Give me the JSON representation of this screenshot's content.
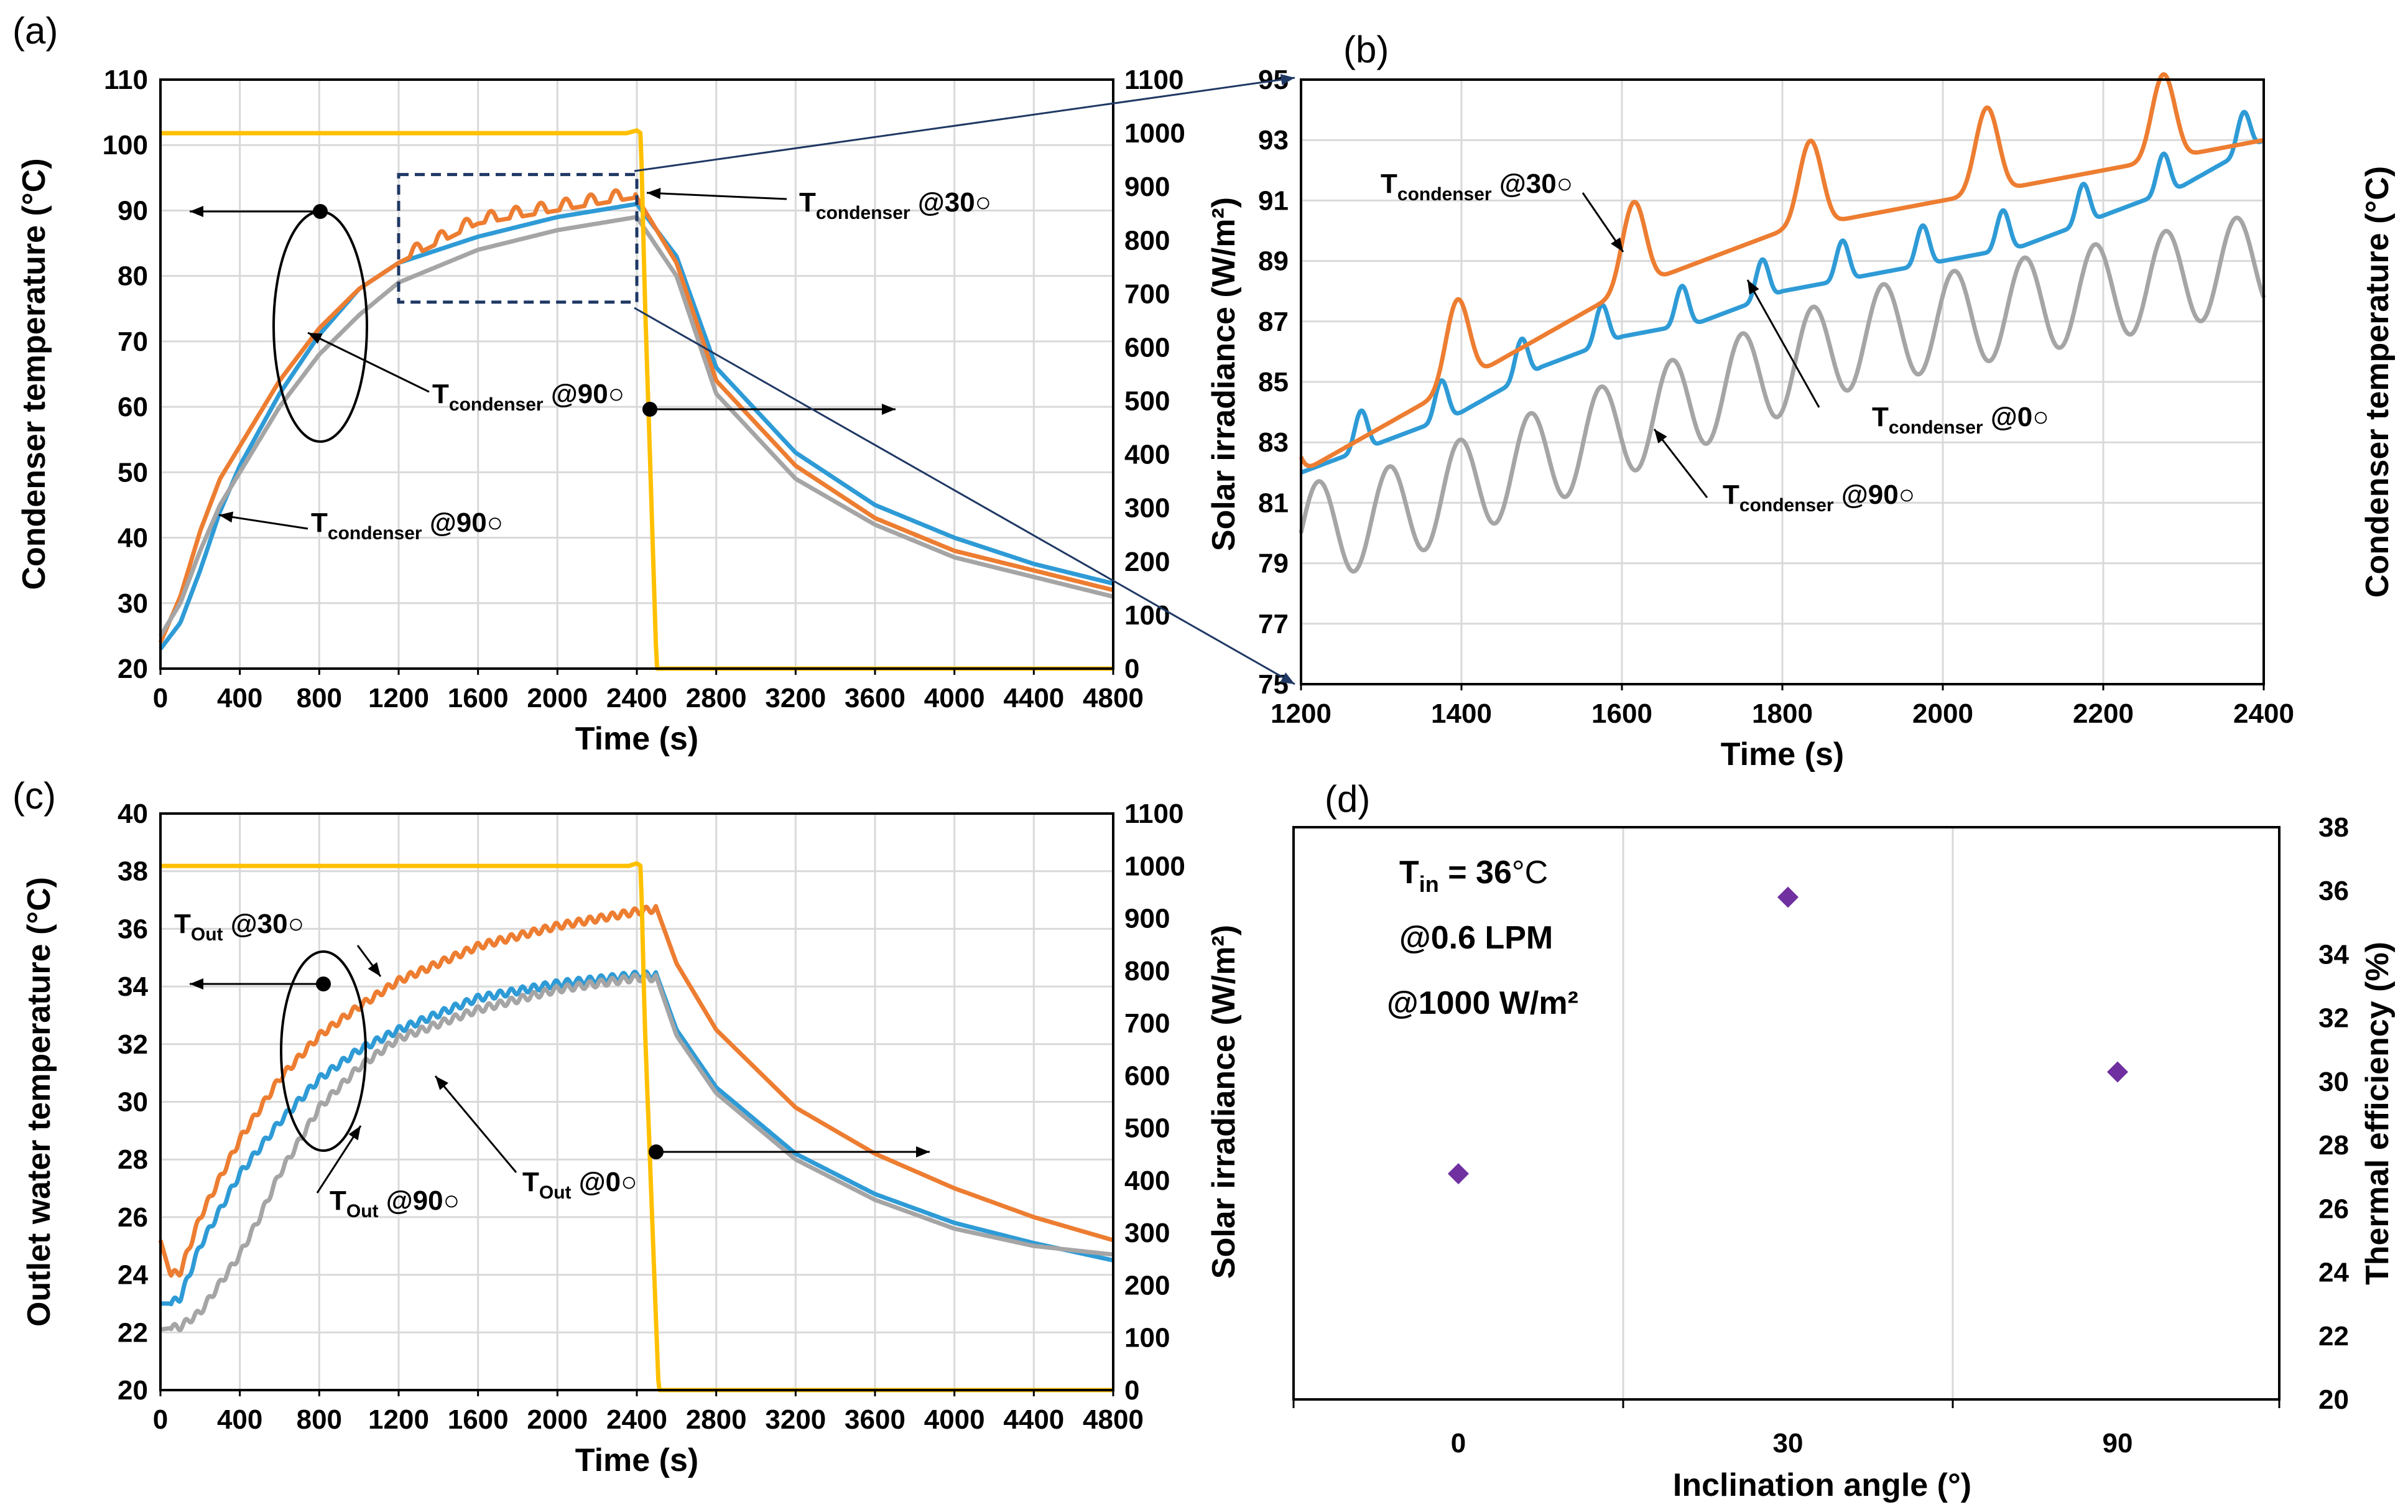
{
  "figure": {
    "panels": [
      "(a)",
      "(b)",
      "(c)",
      "(d)"
    ]
  },
  "colors": {
    "orange": "#ED7D31",
    "blue": "#2E9BD6",
    "gray": "#A5A5A5",
    "yellow": "#FFC000",
    "purple": "#7030A0",
    "navy": "#1F3864"
  },
  "chart_data": [
    {
      "id": "a",
      "type": "line",
      "xlabel": "Time (s)",
      "ylabel": "Condenser temperature (°C)",
      "ylabel2": "Solar irradiance (W/m²)",
      "xlim": [
        0,
        4800
      ],
      "ylim": [
        20,
        110
      ],
      "ylim2": [
        0,
        1100
      ],
      "xticks": [
        0,
        400,
        800,
        1200,
        1600,
        2000,
        2400,
        2800,
        3200,
        3600,
        4000,
        4400,
        4800
      ],
      "yticks": [
        20,
        30,
        40,
        50,
        60,
        70,
        80,
        90,
        100,
        110
      ],
      "yticks2": [
        0,
        100,
        200,
        300,
        400,
        500,
        600,
        700,
        800,
        900,
        1000,
        1100
      ],
      "series": [
        {
          "name": "Tcondenser @0°",
          "color": "blue",
          "x": [
            0,
            100,
            200,
            300,
            400,
            600,
            800,
            1000,
            1200,
            1600,
            2000,
            2400,
            2600,
            2800,
            3200,
            3600,
            4000,
            4400,
            4800
          ],
          "y": [
            23,
            27,
            35,
            44,
            51,
            62,
            71,
            78,
            82,
            86,
            89,
            91,
            83,
            66,
            53,
            45,
            40,
            36,
            33
          ]
        },
        {
          "name": "Tcondenser @30°",
          "color": "orange",
          "x": [
            0,
            100,
            200,
            300,
            400,
            600,
            800,
            1000,
            1200,
            1600,
            2000,
            2400,
            2600,
            2800,
            3200,
            3600,
            4000,
            4400,
            4800
          ],
          "y": [
            24,
            31,
            41,
            49,
            54,
            64,
            72,
            78,
            82,
            88,
            90,
            92,
            82,
            64,
            51,
            43,
            38,
            35,
            32
          ]
        },
        {
          "name": "Tcondenser @90°",
          "color": "gray",
          "x": [
            0,
            100,
            200,
            300,
            400,
            600,
            800,
            1000,
            1200,
            1600,
            2000,
            2400,
            2600,
            2800,
            3200,
            3600,
            4000,
            4400,
            4800
          ],
          "y": [
            25,
            30,
            38,
            45,
            50,
            60,
            68,
            74,
            79,
            84,
            87,
            89,
            80,
            62,
            49,
            42,
            37,
            34,
            31
          ]
        },
        {
          "name": "Solar irradiance",
          "color": "yellow",
          "axis": "right",
          "x": [
            0,
            2350,
            2400,
            2420,
            2440,
            2500,
            4800
          ],
          "y": [
            1000,
            1000,
            1005,
            1000,
            700,
            0,
            0
          ]
        }
      ],
      "annotations": [
        {
          "base": "T",
          "sub": "condenser",
          "text": " @30○"
        },
        {
          "base": "T",
          "sub": "condenser",
          "text": " @90○"
        },
        {
          "base": "T",
          "sub": "condenser",
          "text": " @90○"
        }
      ]
    },
    {
      "id": "b",
      "type": "line",
      "xlabel": "Time (s)",
      "ylabel": "Condenser temperature (°C)",
      "xlim": [
        1200,
        2400
      ],
      "ylim": [
        75,
        95
      ],
      "xticks": [
        1200,
        1400,
        1600,
        1800,
        2000,
        2200,
        2400
      ],
      "yticks": [
        75,
        77,
        79,
        81,
        83,
        85,
        87,
        89,
        91,
        93,
        95
      ],
      "series": [
        {
          "name": "Tcondenser @0°",
          "color": "blue",
          "x": [
            1200,
            1300,
            1400,
            1500,
            1600,
            1700,
            1800,
            1900,
            2000,
            2100,
            2200,
            2300,
            2400
          ],
          "y": [
            82,
            83,
            84,
            85.5,
            86.5,
            87,
            88,
            88.5,
            89,
            89.5,
            90.5,
            91.5,
            93
          ]
        },
        {
          "name": "Tcondenser @30°",
          "color": "orange",
          "x": [
            1200,
            1300,
            1400,
            1500,
            1600,
            1700,
            1800,
            1900,
            2000,
            2100,
            2200,
            2300,
            2400
          ],
          "y": [
            82,
            83.5,
            85,
            86.5,
            88,
            89,
            90,
            90.5,
            91,
            91.5,
            92,
            92.5,
            93
          ]
        },
        {
          "name": "Tcondenser @90°",
          "color": "gray",
          "x": [
            1200,
            1300,
            1400,
            1500,
            1600,
            1700,
            1800,
            1900,
            2000,
            2100,
            2200,
            2300,
            2400
          ],
          "y": [
            80,
            80.5,
            81.5,
            82.5,
            83.5,
            84.5,
            85.5,
            86.5,
            87,
            87.5,
            88,
            88.5,
            89
          ]
        }
      ],
      "annotations": [
        {
          "base": "T",
          "sub": "condenser",
          "text": " @30○"
        },
        {
          "base": "T",
          "sub": "condenser",
          "text": " @0○"
        },
        {
          "base": "T",
          "sub": "condenser",
          "text": " @90○"
        }
      ]
    },
    {
      "id": "c",
      "type": "line",
      "xlabel": "Time (s)",
      "ylabel": "Outlet water temperature (°C)",
      "ylabel2": "Solar irradiance (W/m²)",
      "xlim": [
        0,
        4800
      ],
      "ylim": [
        20,
        40
      ],
      "ylim2": [
        0,
        1100
      ],
      "xticks": [
        0,
        400,
        800,
        1200,
        1600,
        2000,
        2400,
        2800,
        3200,
        3600,
        4000,
        4400,
        4800
      ],
      "yticks": [
        20,
        22,
        24,
        26,
        28,
        30,
        32,
        34,
        36,
        38,
        40
      ],
      "yticks2": [
        0,
        100,
        200,
        300,
        400,
        500,
        600,
        700,
        800,
        900,
        1000,
        1100
      ],
      "series": [
        {
          "name": "TOut @0°",
          "color": "blue",
          "x": [
            0,
            50,
            100,
            200,
            400,
            600,
            800,
            1000,
            1200,
            1600,
            2000,
            2400,
            2500,
            2600,
            2800,
            3200,
            3600,
            4000,
            4400,
            4800
          ],
          "y": [
            23,
            23,
            23.2,
            25,
            27.5,
            29.3,
            30.8,
            31.8,
            32.5,
            33.6,
            34.1,
            34.4,
            34.4,
            32.5,
            30.5,
            28.2,
            26.8,
            25.8,
            25.1,
            24.5
          ]
        },
        {
          "name": "TOut @30°",
          "color": "orange",
          "x": [
            0,
            50,
            100,
            200,
            400,
            600,
            800,
            1000,
            1200,
            1600,
            2000,
            2400,
            2500,
            2600,
            2800,
            3200,
            3600,
            4000,
            4400,
            4800
          ],
          "y": [
            25.2,
            24,
            24.1,
            26,
            28.7,
            30.8,
            32.3,
            33.3,
            34.2,
            35.4,
            36.1,
            36.6,
            36.7,
            34.8,
            32.5,
            29.8,
            28.2,
            27,
            26,
            25.2
          ]
        },
        {
          "name": "TOut @90°",
          "color": "gray",
          "x": [
            0,
            100,
            200,
            400,
            500,
            600,
            800,
            1000,
            1200,
            1600,
            2000,
            2400,
            2500,
            2600,
            2800,
            3200,
            3600,
            4000,
            4400,
            4800
          ],
          "y": [
            22.1,
            22.2,
            22.7,
            24.7,
            26,
            27.5,
            29.8,
            31.2,
            32.2,
            33.2,
            33.9,
            34.3,
            34.3,
            32.3,
            30.3,
            28,
            26.6,
            25.6,
            25,
            24.7
          ]
        },
        {
          "name": "Solar irradiance",
          "color": "yellow",
          "axis": "right",
          "x": [
            0,
            2360,
            2400,
            2420,
            2440,
            2510,
            4800
          ],
          "y": [
            1000,
            1000,
            1005,
            1000,
            700,
            0,
            0
          ]
        }
      ],
      "annotations": [
        {
          "base": "T",
          "sub": "Out",
          "text": " @30○"
        },
        {
          "base": "T",
          "sub": "Out",
          "text": " @90○"
        },
        {
          "base": "T",
          "sub": "Out",
          "text": " @0○"
        }
      ]
    },
    {
      "id": "d",
      "type": "scatter",
      "xlabel": "Inclination angle (°)",
      "ylabel": "Thermal efficiency (%)",
      "categories": [
        "0",
        "30",
        "90"
      ],
      "values": [
        27.1,
        35.8,
        30.3
      ],
      "ylim": [
        20,
        38
      ],
      "yticks": [
        20,
        22,
        24,
        26,
        28,
        30,
        32,
        34,
        36,
        38
      ],
      "conditions": {
        "tin_base": "T",
        "tin_sub": "in",
        "tin_value": " = 36",
        "tin_unit": "°C",
        "flow": "@0.6 LPM",
        "irradiance": "@1000 W/m²"
      }
    }
  ]
}
